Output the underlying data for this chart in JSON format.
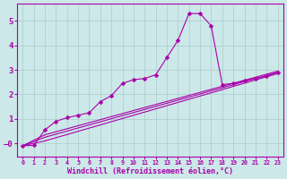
{
  "title": "",
  "xlabel": "Windchill (Refroidissement éolien,°C)",
  "bg_color": "#cce8e8",
  "grid_color": "#aacccc",
  "line_color": "#aa00aa",
  "xlim": [
    -0.5,
    23.5
  ],
  "ylim": [
    -0.55,
    5.7
  ],
  "xticks": [
    0,
    1,
    2,
    3,
    4,
    5,
    6,
    7,
    8,
    9,
    10,
    11,
    12,
    13,
    14,
    15,
    16,
    17,
    18,
    19,
    20,
    21,
    22,
    23
  ],
  "yticks": [
    0,
    1,
    2,
    3,
    4,
    5
  ],
  "series": [
    {
      "x": [
        0,
        2,
        23
      ],
      "y": [
        -0.1,
        0.1,
        2.85
      ],
      "has_markers": false
    },
    {
      "x": [
        0,
        2,
        23
      ],
      "y": [
        -0.1,
        0.25,
        2.9
      ],
      "has_markers": false
    },
    {
      "x": [
        0,
        2,
        23
      ],
      "y": [
        -0.1,
        0.35,
        2.95
      ],
      "has_markers": false
    },
    {
      "x": [
        0,
        1,
        2,
        3,
        4,
        5,
        6,
        7,
        8,
        9,
        10,
        11,
        12,
        13,
        14,
        15,
        16,
        17,
        18,
        19,
        20,
        21,
        22,
        23
      ],
      "y": [
        -0.1,
        -0.08,
        0.55,
        0.9,
        1.05,
        1.15,
        1.25,
        1.7,
        1.95,
        2.45,
        2.6,
        2.65,
        2.8,
        3.5,
        4.2,
        5.3,
        5.3,
        4.8,
        2.4,
        2.45,
        2.55,
        2.65,
        2.75,
        2.9
      ],
      "has_markers": true
    }
  ],
  "marker": "D",
  "marker_size": 2.5,
  "line_width": 0.8
}
